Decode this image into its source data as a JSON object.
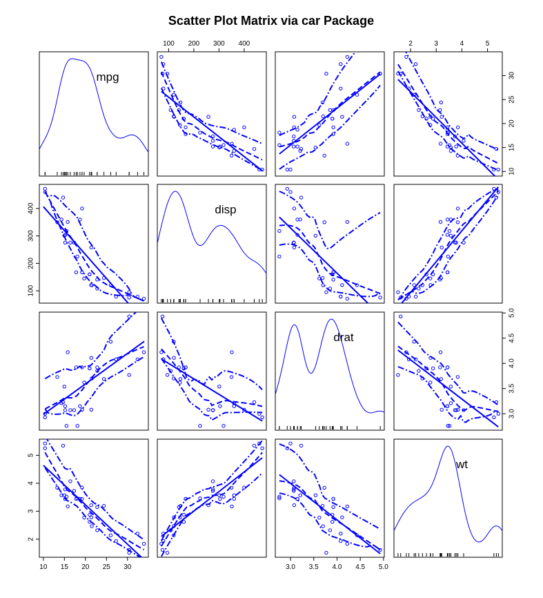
{
  "title": "Scatter Plot Matrix via car Package",
  "colors": {
    "points": "#0000ff",
    "lines": "#0000ff",
    "frame": "#000000",
    "background": "#ffffff"
  },
  "chart_data": {
    "type": "scatter",
    "title": "Scatter Plot Matrix via car Package",
    "variables": [
      "mpg",
      "disp",
      "drat",
      "wt"
    ],
    "diagonal": "density",
    "smoother": "loess with spread",
    "regression_line": true,
    "axes": {
      "mpg": {
        "range": [
          10,
          34
        ],
        "ticks": [
          10,
          15,
          20,
          25,
          30
        ]
      },
      "disp": {
        "range": [
          71,
          472
        ],
        "ticks": [
          100,
          200,
          300,
          400
        ]
      },
      "drat": {
        "range": [
          2.76,
          4.93
        ],
        "ticks": [
          3.0,
          3.5,
          4.0,
          4.5,
          5.0
        ],
        "tick_labels": [
          "3.0",
          "3.5",
          "4.0",
          "4.5",
          "5.0"
        ]
      },
      "wt": {
        "range": [
          1.51,
          5.42
        ],
        "ticks": [
          2,
          3,
          4,
          5
        ]
      }
    },
    "data": {
      "mpg": [
        21.0,
        21.0,
        22.8,
        21.4,
        18.7,
        18.1,
        14.3,
        24.4,
        22.8,
        19.2,
        17.8,
        16.4,
        17.3,
        15.2,
        10.4,
        10.4,
        14.7,
        32.4,
        30.4,
        33.9,
        21.5,
        15.5,
        15.2,
        13.3,
        19.2,
        27.3,
        26.0,
        30.4,
        15.8,
        19.7,
        15.0,
        21.4
      ],
      "disp": [
        160,
        160,
        108,
        258,
        360,
        225,
        360,
        146.7,
        140.8,
        167.6,
        167.6,
        275.8,
        275.8,
        275.8,
        472,
        460,
        440,
        78.7,
        75.7,
        71.1,
        120.1,
        318,
        304,
        350,
        400,
        79,
        120.3,
        95.1,
        351,
        145,
        301,
        121
      ],
      "drat": [
        3.9,
        3.9,
        3.85,
        3.08,
        3.15,
        2.76,
        3.21,
        3.69,
        3.92,
        3.92,
        3.92,
        3.07,
        3.07,
        3.07,
        2.93,
        3.0,
        3.23,
        4.08,
        4.93,
        4.22,
        3.7,
        2.76,
        3.15,
        3.73,
        3.08,
        4.08,
        4.43,
        3.77,
        4.22,
        3.62,
        3.54,
        4.11
      ],
      "wt": [
        2.62,
        2.875,
        2.32,
        3.215,
        3.44,
        3.46,
        3.57,
        3.19,
        3.15,
        3.44,
        3.44,
        4.07,
        3.73,
        3.78,
        5.25,
        5.424,
        5.345,
        2.2,
        1.615,
        1.835,
        2.465,
        3.52,
        3.435,
        3.84,
        3.845,
        1.935,
        2.14,
        1.513,
        3.17,
        2.77,
        3.57,
        2.78
      ]
    }
  }
}
